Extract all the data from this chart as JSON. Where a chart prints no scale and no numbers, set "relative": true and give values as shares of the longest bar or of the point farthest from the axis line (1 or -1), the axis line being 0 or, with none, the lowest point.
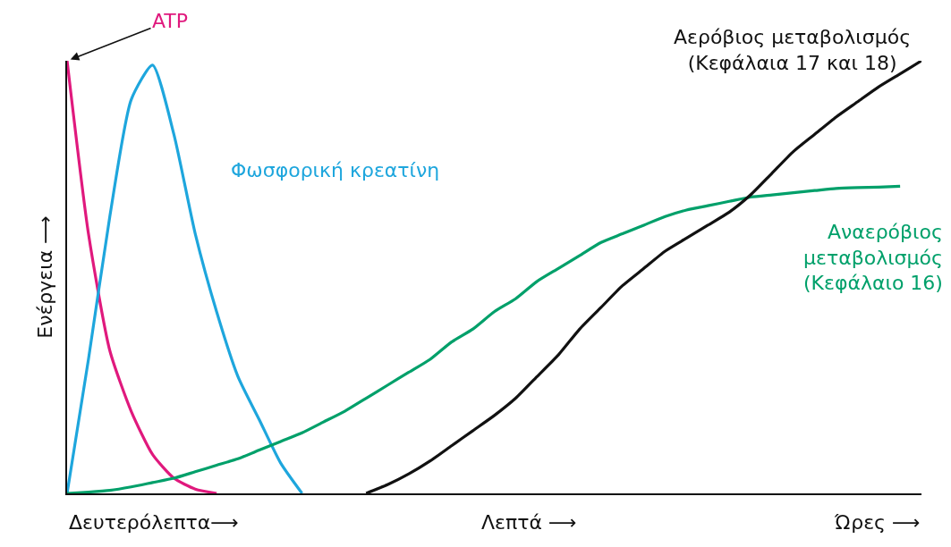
{
  "chart_data": {
    "type": "line",
    "relative": true,
    "ylabel": "Ενέργεια ⟶",
    "categories": [
      null,
      null,
      null,
      null,
      null,
      null,
      null,
      null,
      null,
      null,
      null,
      null,
      null,
      null,
      null,
      null,
      null,
      null,
      null,
      null,
      null,
      null,
      null,
      null,
      null,
      null,
      null,
      null,
      null,
      null,
      null,
      null,
      null,
      null,
      null,
      null,
      null,
      null,
      null,
      null,
      null
    ],
    "series": [
      {
        "name": "ATP",
        "color": "#e0197d",
        "values": [
          1.0,
          0.6,
          0.33,
          0.19,
          0.09,
          0.035,
          0.01,
          0,
          null,
          null,
          null,
          null,
          null,
          null,
          null,
          null,
          null,
          null,
          null,
          null,
          null,
          null,
          null,
          null,
          null,
          null,
          null,
          null,
          null,
          null,
          null,
          null,
          null,
          null,
          null,
          null,
          null,
          null,
          null,
          null,
          null
        ]
      },
      {
        "name": "Φωσφορική κρεατίνη",
        "color": "#1ea6dd",
        "values": [
          0,
          0.31,
          0.64,
          0.91,
          0.99,
          0.83,
          0.6,
          0.42,
          0.27,
          0.17,
          0.07,
          0,
          null,
          null,
          null,
          null,
          null,
          null,
          null,
          null,
          null,
          null,
          null,
          null,
          null,
          null,
          null,
          null,
          null,
          null,
          null,
          null,
          null,
          null,
          null,
          null,
          null,
          null,
          null,
          null,
          null
        ]
      },
      {
        "name": "Αναερόβιος\nμεταβολισμός\n(Κεφάλαιο 16)",
        "color": "#00a06a",
        "values": [
          0,
          0.003,
          0.007,
          0.015,
          0.025,
          0.035,
          0.05,
          0.065,
          0.08,
          0.1,
          0.12,
          0.14,
          0.165,
          0.19,
          0.22,
          0.25,
          0.28,
          0.31,
          0.35,
          0.38,
          0.42,
          0.45,
          0.49,
          0.52,
          0.55,
          0.58,
          0.6,
          0.62,
          0.64,
          0.655,
          0.665,
          0.675,
          0.685,
          0.69,
          0.695,
          0.7,
          0.705,
          0.707,
          0.708,
          0.71,
          null
        ]
      },
      {
        "name": "Αερόβιος μεταβολισμός\n(Κεφάλαια 17 και 18)",
        "color": "#111111",
        "values": [
          null,
          null,
          null,
          null,
          null,
          null,
          null,
          null,
          null,
          null,
          null,
          null,
          null,
          null,
          0,
          0.02,
          0.045,
          0.075,
          0.11,
          0.145,
          0.18,
          0.22,
          0.27,
          0.32,
          0.38,
          0.43,
          0.48,
          0.52,
          0.56,
          0.59,
          0.62,
          0.65,
          0.69,
          0.74,
          0.79,
          0.83,
          0.87,
          0.905,
          0.94,
          0.97,
          1.0
        ]
      }
    ],
    "annotations": [
      "Δευτερόλεπτα⟶",
      "Λεπτά ⟶",
      "Ώρες ⟶"
    ]
  }
}
